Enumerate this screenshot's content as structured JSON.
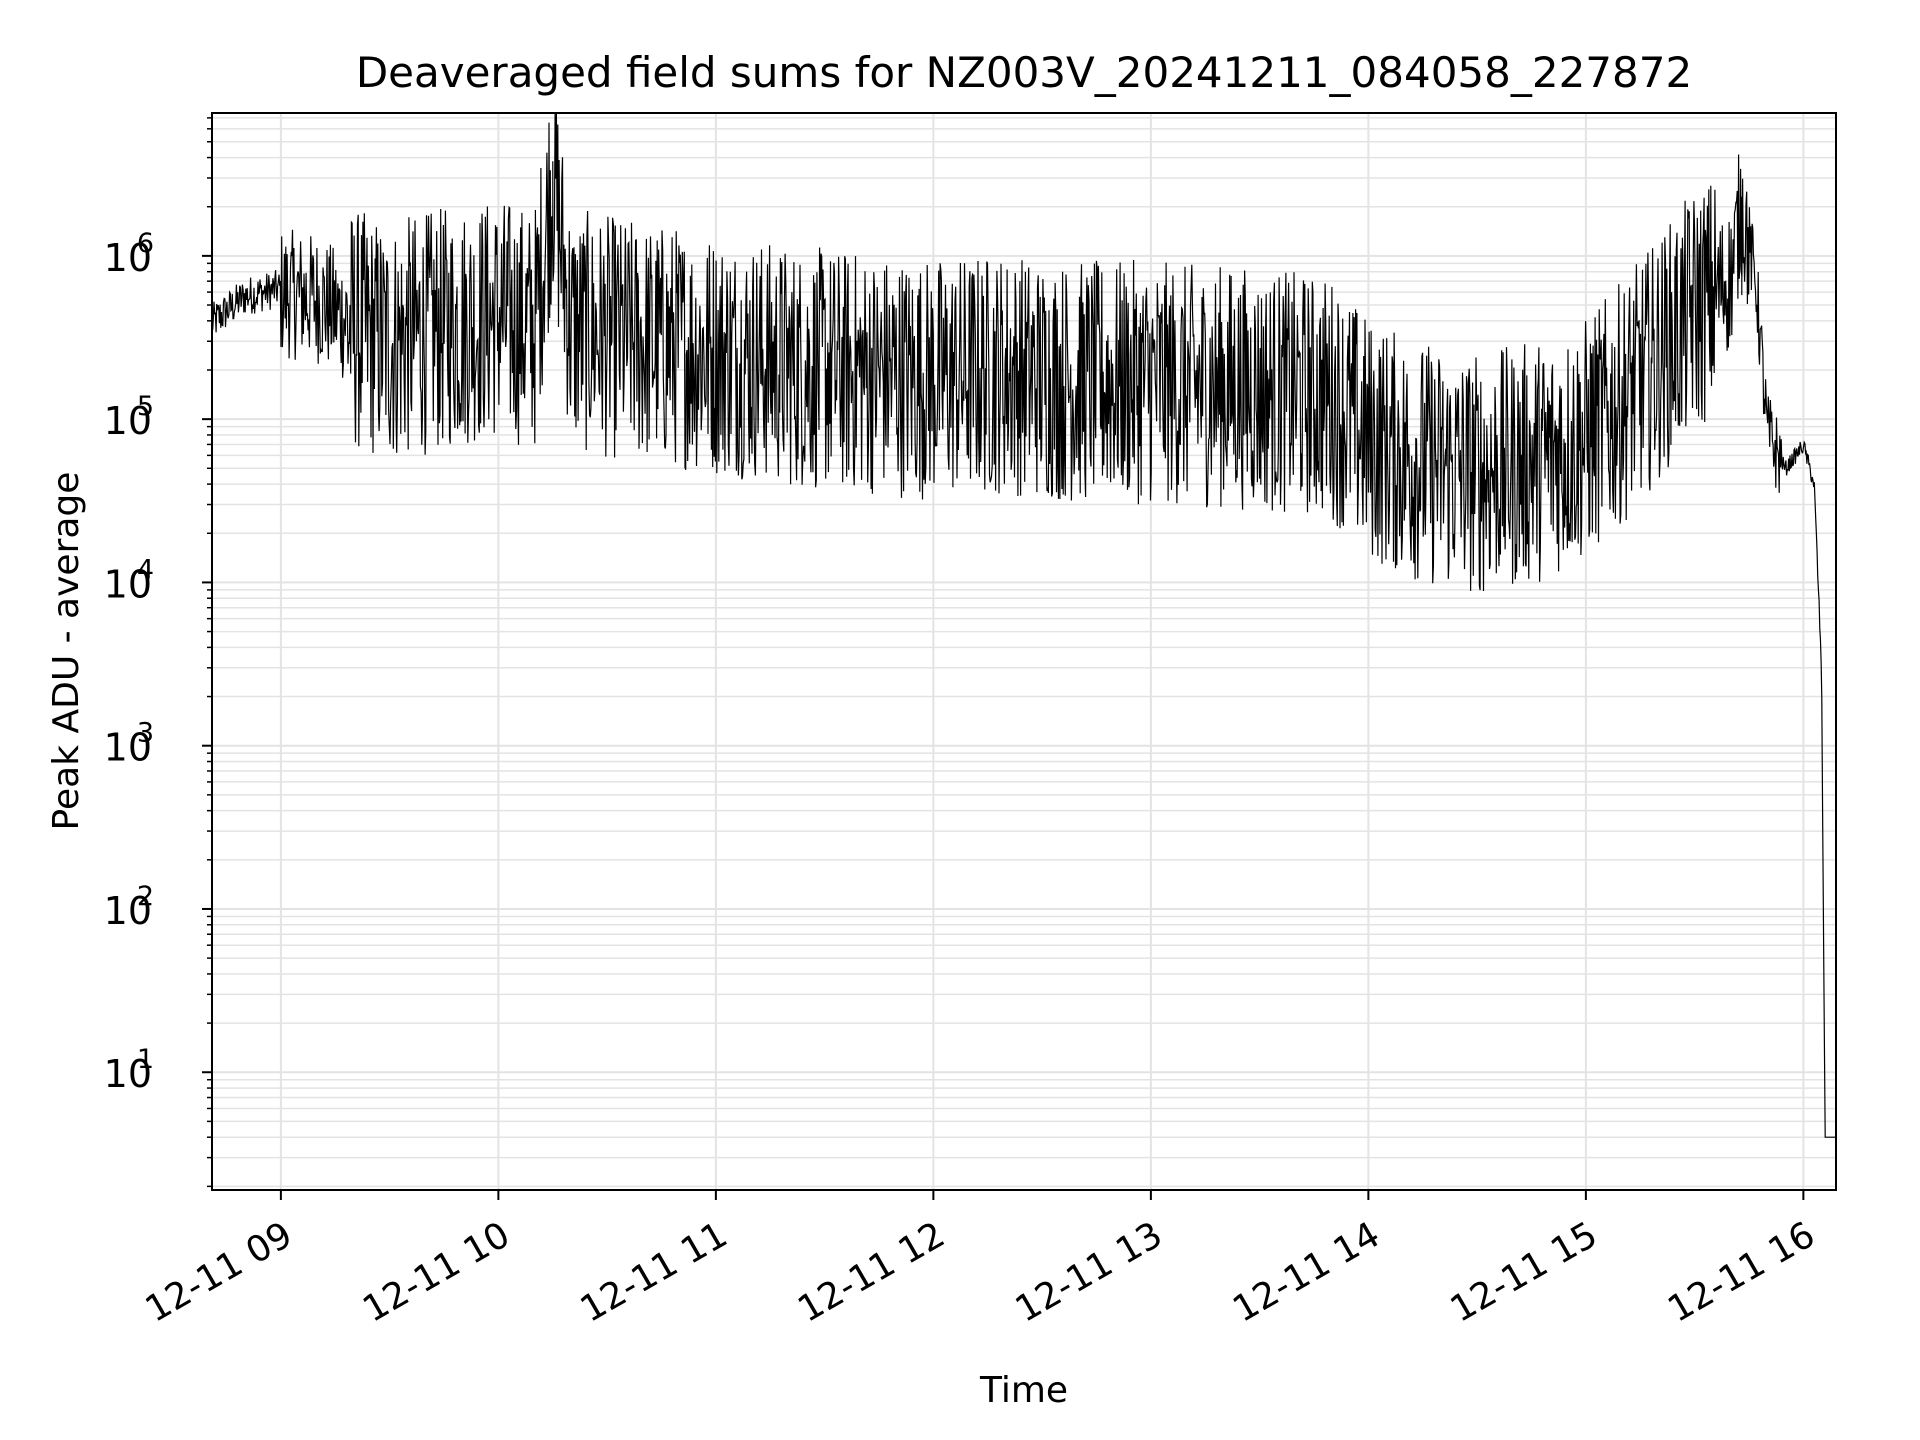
{
  "chart_data": {
    "type": "line",
    "title": "Deaveraged field sums for NZ003V_20241211_084058_227872",
    "xlabel": "Time",
    "ylabel": "Peak ADU - average",
    "yscale": "log",
    "ylim": [
      1.9,
      7500000
    ],
    "xlim": [
      "12-11 08:41",
      "12-11 16:09"
    ],
    "grid": true,
    "x_ticks": [
      "12-11 09",
      "12-11 10",
      "12-11 11",
      "12-11 12",
      "12-11 13",
      "12-11 14",
      "12-11 15",
      "12-11 16"
    ],
    "y_ticks": [
      {
        "value": 10,
        "base": "10",
        "exp": "1"
      },
      {
        "value": 100,
        "base": "10",
        "exp": "2"
      },
      {
        "value": 1000,
        "base": "10",
        "exp": "3"
      },
      {
        "value": 10000,
        "base": "10",
        "exp": "4"
      },
      {
        "value": 100000,
        "base": "10",
        "exp": "5"
      },
      {
        "value": 1000000,
        "base": "10",
        "exp": "6"
      }
    ],
    "line_color": "#000000",
    "series": [
      {
        "x": [
          "12-11 08:41",
          "12-11 08:50",
          "12-11 09:00",
          "12-11 09:10",
          "12-11 09:20",
          "12-11 09:30",
          "12-11 09:40",
          "12-11 09:50",
          "12-11 10:00",
          "12-11 10:10",
          "12-11 10:15",
          "12-11 10:20",
          "12-11 10:30",
          "12-11 10:40",
          "12-11 10:50",
          "12-11 11:00",
          "12-11 11:10",
          "12-11 11:20",
          "12-11 11:30",
          "12-11 11:40",
          "12-11 11:50",
          "12-11 12:00",
          "12-11 12:10",
          "12-11 12:20",
          "12-11 12:30",
          "12-11 12:40",
          "12-11 12:50",
          "12-11 13:00",
          "12-11 13:10",
          "12-11 13:20",
          "12-11 13:30",
          "12-11 13:40",
          "12-11 13:50",
          "12-11 14:00",
          "12-11 14:10",
          "12-11 14:20",
          "12-11 14:30",
          "12-11 14:40",
          "12-11 14:50",
          "12-11 15:00",
          "12-11 15:10",
          "12-11 15:20",
          "12-11 15:30",
          "12-11 15:40",
          "12-11 15:43",
          "12-11 15:47",
          "12-11 15:50",
          "12-11 15:55",
          "12-11 16:00",
          "12-11 16:03",
          "12-11 16:05",
          "12-11 16:06",
          "12-11 16:07",
          "12-11 16:09"
        ],
        "y": [
          400000,
          580000,
          650000,
          600000,
          420000,
          350000,
          400000,
          450000,
          500000,
          420000,
          3800000,
          420000,
          380000,
          350000,
          330000,
          300000,
          280000,
          250000,
          240000,
          230000,
          220000,
          210000,
          220000,
          230000,
          210000,
          200000,
          200000,
          200000,
          190000,
          190000,
          180000,
          170000,
          160000,
          90000,
          70000,
          60000,
          55000,
          60000,
          70000,
          90000,
          150000,
          280000,
          550000,
          800000,
          2300000,
          700000,
          90000,
          50000,
          70000,
          40000,
          3000,
          4,
          4,
          4
        ]
      }
    ]
  }
}
